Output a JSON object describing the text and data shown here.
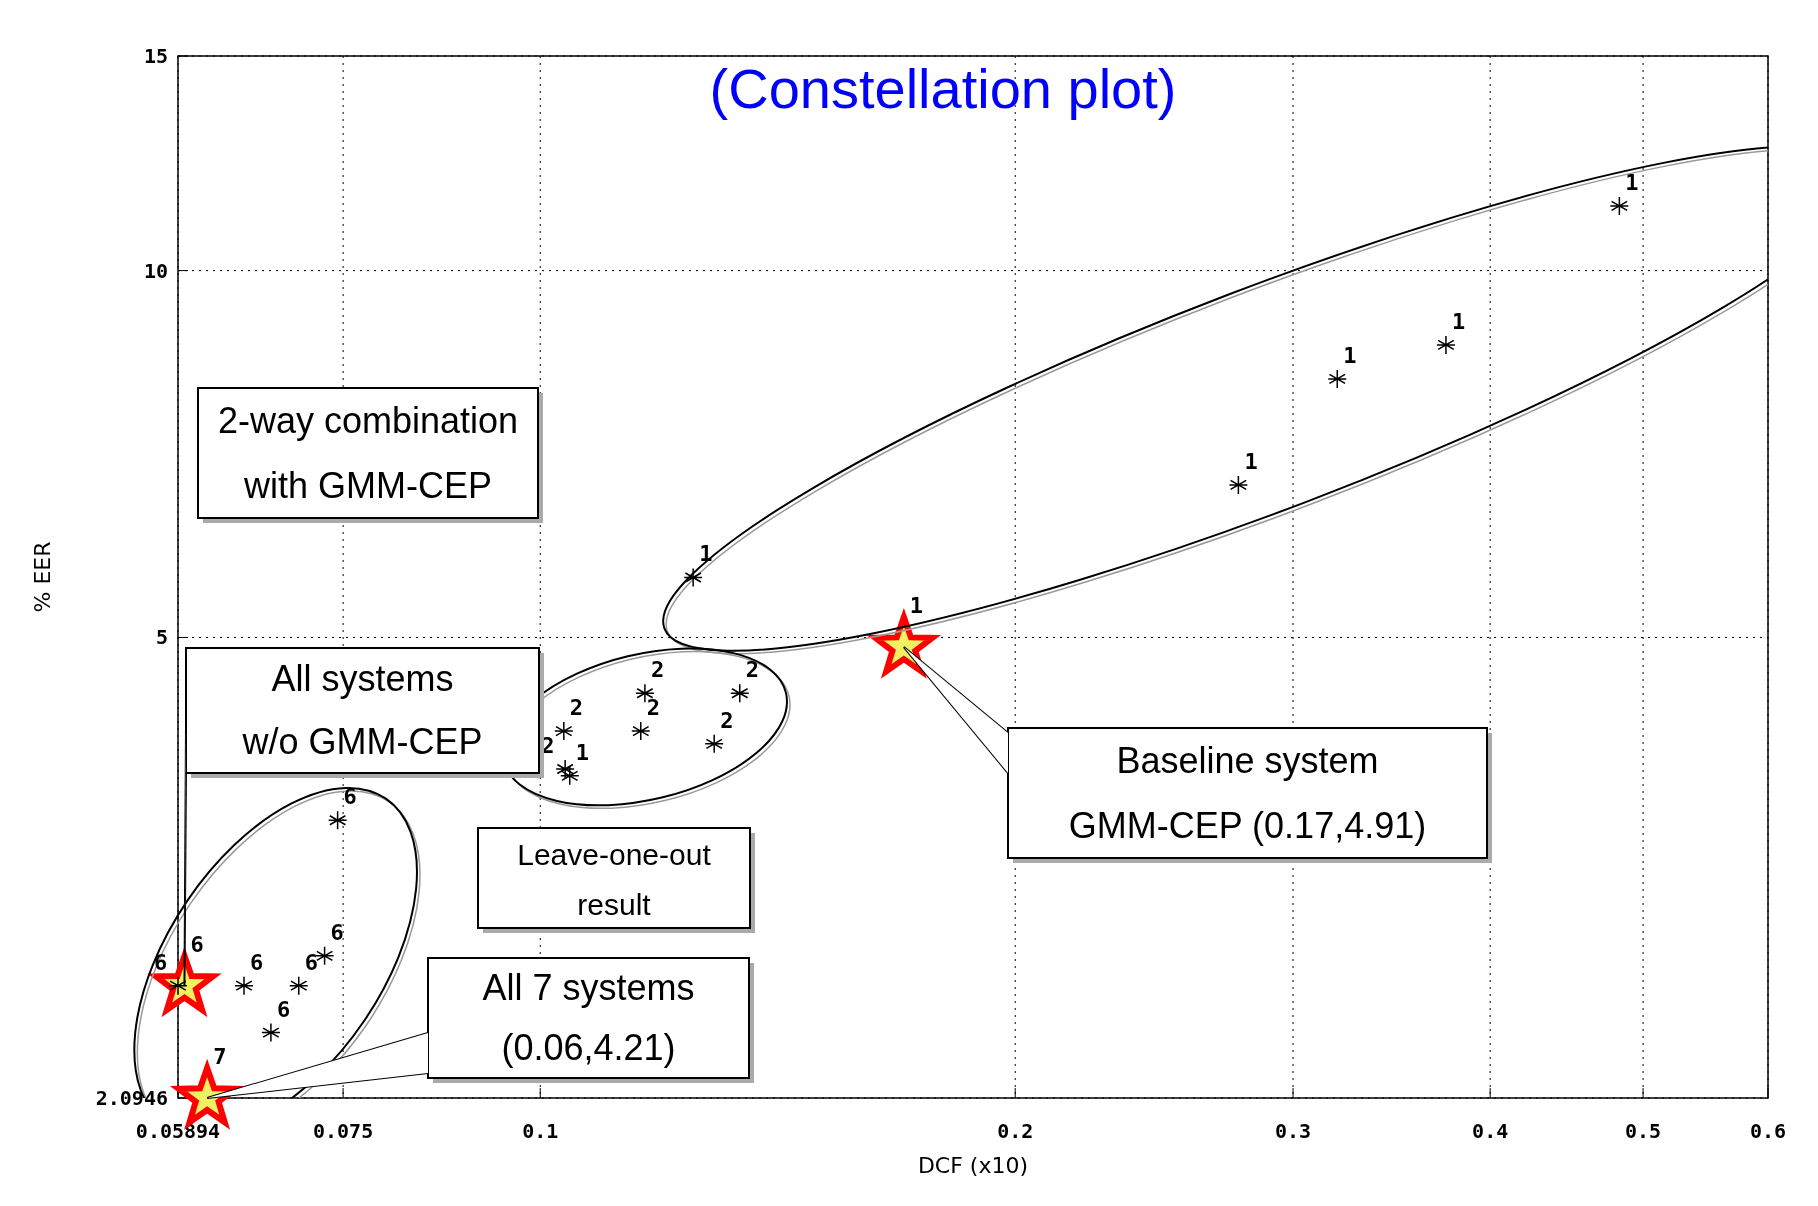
{
  "chart_data": {
    "type": "scatter",
    "title": "(Constellation plot)",
    "xlabel": "DCF (x10)",
    "ylabel": "% EER",
    "log": "xy",
    "grid": true,
    "marker": "cross",
    "xlim": [
      0.05894,
      0.6
    ],
    "xticks": [
      0.05894,
      0.075,
      0.1,
      0.2,
      0.3,
      0.4,
      0.5,
      0.6
    ],
    "ylim": [
      2.0946,
      15
    ],
    "yticks": [
      2.0946,
      5,
      10,
      15
    ],
    "series": [
      {
        "name": "1",
        "color": "#ff0000",
        "marker": "star",
        "x": [
          0.17
        ],
        "values": [
          4.91
        ]
      },
      {
        "name": "6",
        "color": "#ff0000",
        "marker": "star",
        "x": [
          0.0595
        ],
        "values": [
          2.59
        ]
      },
      {
        "name": "7",
        "color": "#ff0000",
        "marker": "star",
        "x": [
          0.0615
        ],
        "values": [
          2.0946
        ]
      },
      {
        "name": "1",
        "color": "#000000",
        "x": [
          0.125,
          0.277,
          0.32,
          0.375,
          0.483
        ],
        "values": [
          5.6,
          6.67,
          8.15,
          8.69,
          11.3
        ]
      },
      {
        "name": "1",
        "color": "#000000",
        "x": [
          0.1044
        ],
        "values": [
          3.85
        ]
      },
      {
        "name": "2",
        "color": "#000000",
        "x": [
          0.1165,
          0.1338,
          0.1035,
          0.1158,
          0.1289,
          0.1037
        ],
        "values": [
          4.5,
          4.5,
          4.19,
          4.19,
          4.09,
          3.9
        ]
      },
      {
        "name": "6",
        "color": "#000000",
        "x": [
          0.0744,
          0.073,
          0.0703,
          0.0649,
          0.0675,
          0.05894
        ],
        "values": [
          3.54,
          2.74,
          2.59,
          2.59,
          2.37,
          2.59
        ]
      }
    ],
    "annotations": [
      "2-way combination\nwith GMM-CEP",
      "Leave-one-out\nresult",
      "Baseline system\nGMM-CEP (0.17,4.91)",
      "All systems\nw/o GMM-CEP",
      "All 7 systems\n(0.06,4.21)"
    ]
  }
}
